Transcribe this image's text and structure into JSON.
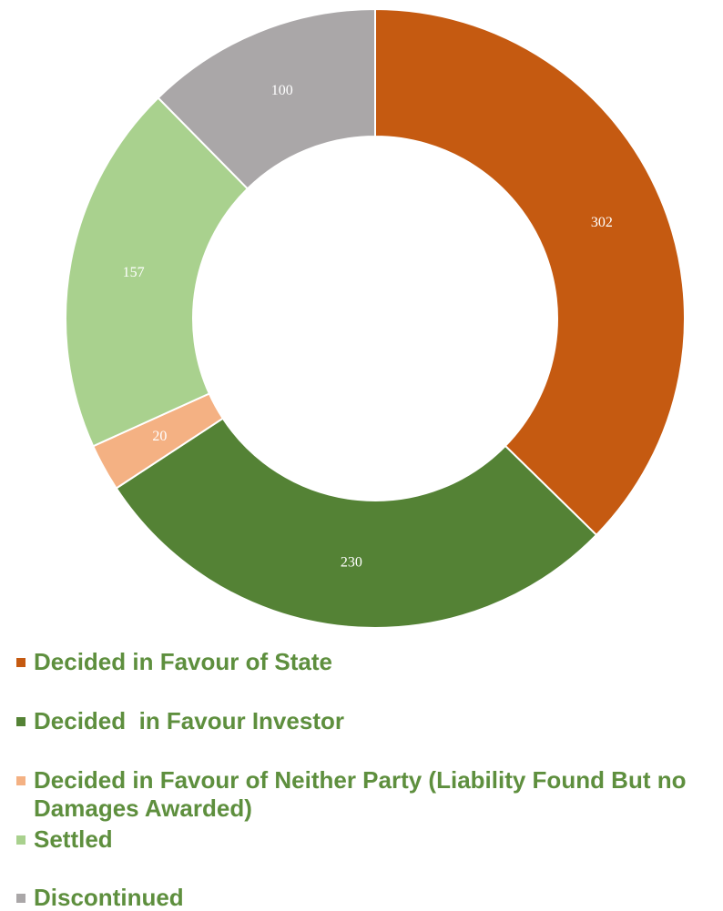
{
  "chart_data": {
    "type": "donut",
    "categories": [
      "Decided in Favour of State",
      "Decided  in Favour Investor",
      "Decided in Favour of Neither Party (Liability Found But no Damages Awarded)",
      "Settled",
      "Discontinued"
    ],
    "values": [
      302,
      230,
      20,
      157,
      100
    ],
    "colors": [
      "#c55a11",
      "#548235",
      "#f4b183",
      "#a9d18e",
      "#aaa7a8"
    ],
    "legend": "bottom"
  }
}
